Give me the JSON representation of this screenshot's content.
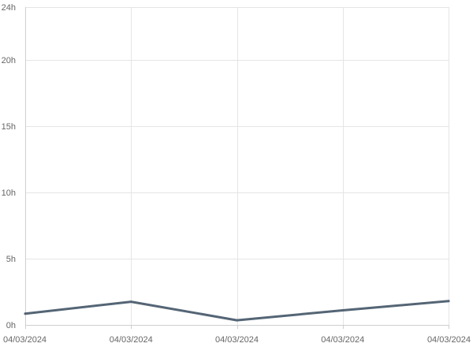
{
  "chart_data": {
    "type": "line",
    "x": [
      "04/03/2024",
      "04/03/2024",
      "04/03/2024",
      "04/03/2024",
      "04/03/2024"
    ],
    "series": [
      {
        "values": [
          0.85,
          1.75,
          0.35,
          1.1,
          1.8
        ]
      }
    ],
    "ylim": [
      0,
      24
    ],
    "yticks": [
      0,
      5,
      10,
      15,
      20,
      24
    ],
    "ytick_labels": [
      "0h",
      "5h",
      "10h",
      "15h",
      "20h",
      "24h"
    ],
    "xtick_labels": [
      "04/03/2024",
      "04/03/2024",
      "04/03/2024",
      "04/03/2024",
      "04/03/2024"
    ],
    "grid": true,
    "line_color": "#546575",
    "grid_color": "#e5e5e5"
  }
}
